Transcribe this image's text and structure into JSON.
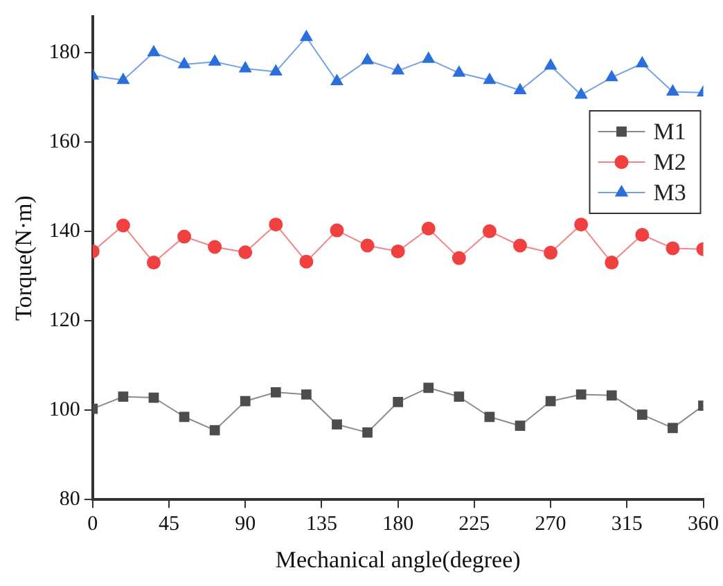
{
  "chart_data": {
    "type": "line",
    "xlabel": "Mechanical angle(degree)",
    "ylabel": "Torque(N·m)",
    "x": [
      0,
      18,
      36,
      54,
      72,
      90,
      108,
      126,
      144,
      162,
      180,
      198,
      216,
      234,
      252,
      270,
      288,
      306,
      324,
      342,
      360
    ],
    "series": [
      {
        "name": "M1",
        "color": "#4d4d4d",
        "marker": "square",
        "values": [
          100.3,
          103,
          102.8,
          98.5,
          95.5,
          102,
          104,
          103.5,
          96.8,
          95,
          101.8,
          105,
          103,
          98.5,
          96.5,
          102,
          103.5,
          103.3,
          99,
          96,
          101
        ]
      },
      {
        "name": "M2",
        "color": "#f04040",
        "marker": "circle",
        "values": [
          135.5,
          141.3,
          133,
          138.8,
          136.5,
          135.3,
          141.5,
          133.2,
          140.2,
          136.8,
          135.5,
          140.6,
          134,
          140,
          136.8,
          135.2,
          141.5,
          133,
          139.2,
          136.2,
          136
        ]
      },
      {
        "name": "M3",
        "color": "#2a6fdb",
        "marker": "triangle",
        "values": [
          174.8,
          173.8,
          180,
          177.3,
          177.9,
          176.4,
          175.7,
          183.4,
          173.5,
          178.2,
          175.9,
          178.5,
          175.4,
          173.8,
          171.5,
          177,
          170.5,
          174.4,
          177.5,
          171.2,
          171
        ]
      }
    ],
    "xlim": [
      0,
      360
    ],
    "xticks": [
      0,
      45,
      90,
      135,
      180,
      225,
      270,
      315,
      360
    ],
    "ylim": [
      80,
      188
    ],
    "yticks": [
      80,
      100,
      120,
      140,
      160,
      180
    ],
    "grid": false,
    "legend": "right",
    "line_style": "solid"
  }
}
